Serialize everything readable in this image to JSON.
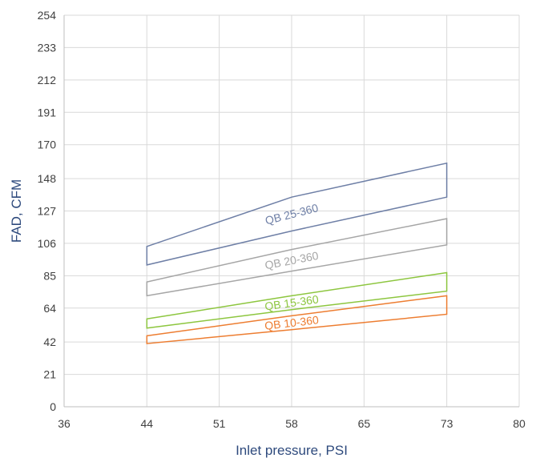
{
  "chart_data": {
    "type": "area",
    "xlabel": "Inlet pressure, PSI",
    "ylabel": "FAD, CFM",
    "xlim": [
      36,
      80
    ],
    "ylim": [
      0,
      254
    ],
    "x_ticks": [
      36,
      44,
      51,
      58,
      65,
      73,
      80
    ],
    "y_ticks": [
      0,
      21,
      42,
      64,
      85,
      106,
      127,
      148,
      170,
      191,
      212,
      233,
      254
    ],
    "grid": true,
    "colors": {
      "axis_title": "#2E4A7D",
      "grid": "#d9d9d9",
      "axis": "#bfbfbf"
    },
    "series": [
      {
        "name": "QB 25-360",
        "color": "#6E7FA6",
        "upper": [
          [
            44,
            104
          ],
          [
            58,
            136
          ],
          [
            73,
            158
          ]
        ],
        "lower": [
          [
            44,
            92
          ],
          [
            58,
            114
          ],
          [
            73,
            136
          ]
        ]
      },
      {
        "name": "QB 20-360",
        "color": "#A6A6A6",
        "upper": [
          [
            44,
            81
          ],
          [
            58,
            102
          ],
          [
            73,
            122
          ]
        ],
        "lower": [
          [
            44,
            72
          ],
          [
            58,
            88
          ],
          [
            73,
            105
          ]
        ]
      },
      {
        "name": "QB 15-360",
        "color": "#8DC63F",
        "upper": [
          [
            44,
            57
          ],
          [
            58,
            72
          ],
          [
            73,
            87
          ]
        ],
        "lower": [
          [
            44,
            51
          ],
          [
            58,
            63
          ],
          [
            73,
            75
          ]
        ]
      },
      {
        "name": "QB 10-360",
        "color": "#ED7D31",
        "upper": [
          [
            44,
            46
          ],
          [
            58,
            59
          ],
          [
            73,
            72
          ]
        ],
        "lower": [
          [
            44,
            41
          ],
          [
            58,
            50
          ],
          [
            73,
            60
          ]
        ]
      }
    ]
  }
}
